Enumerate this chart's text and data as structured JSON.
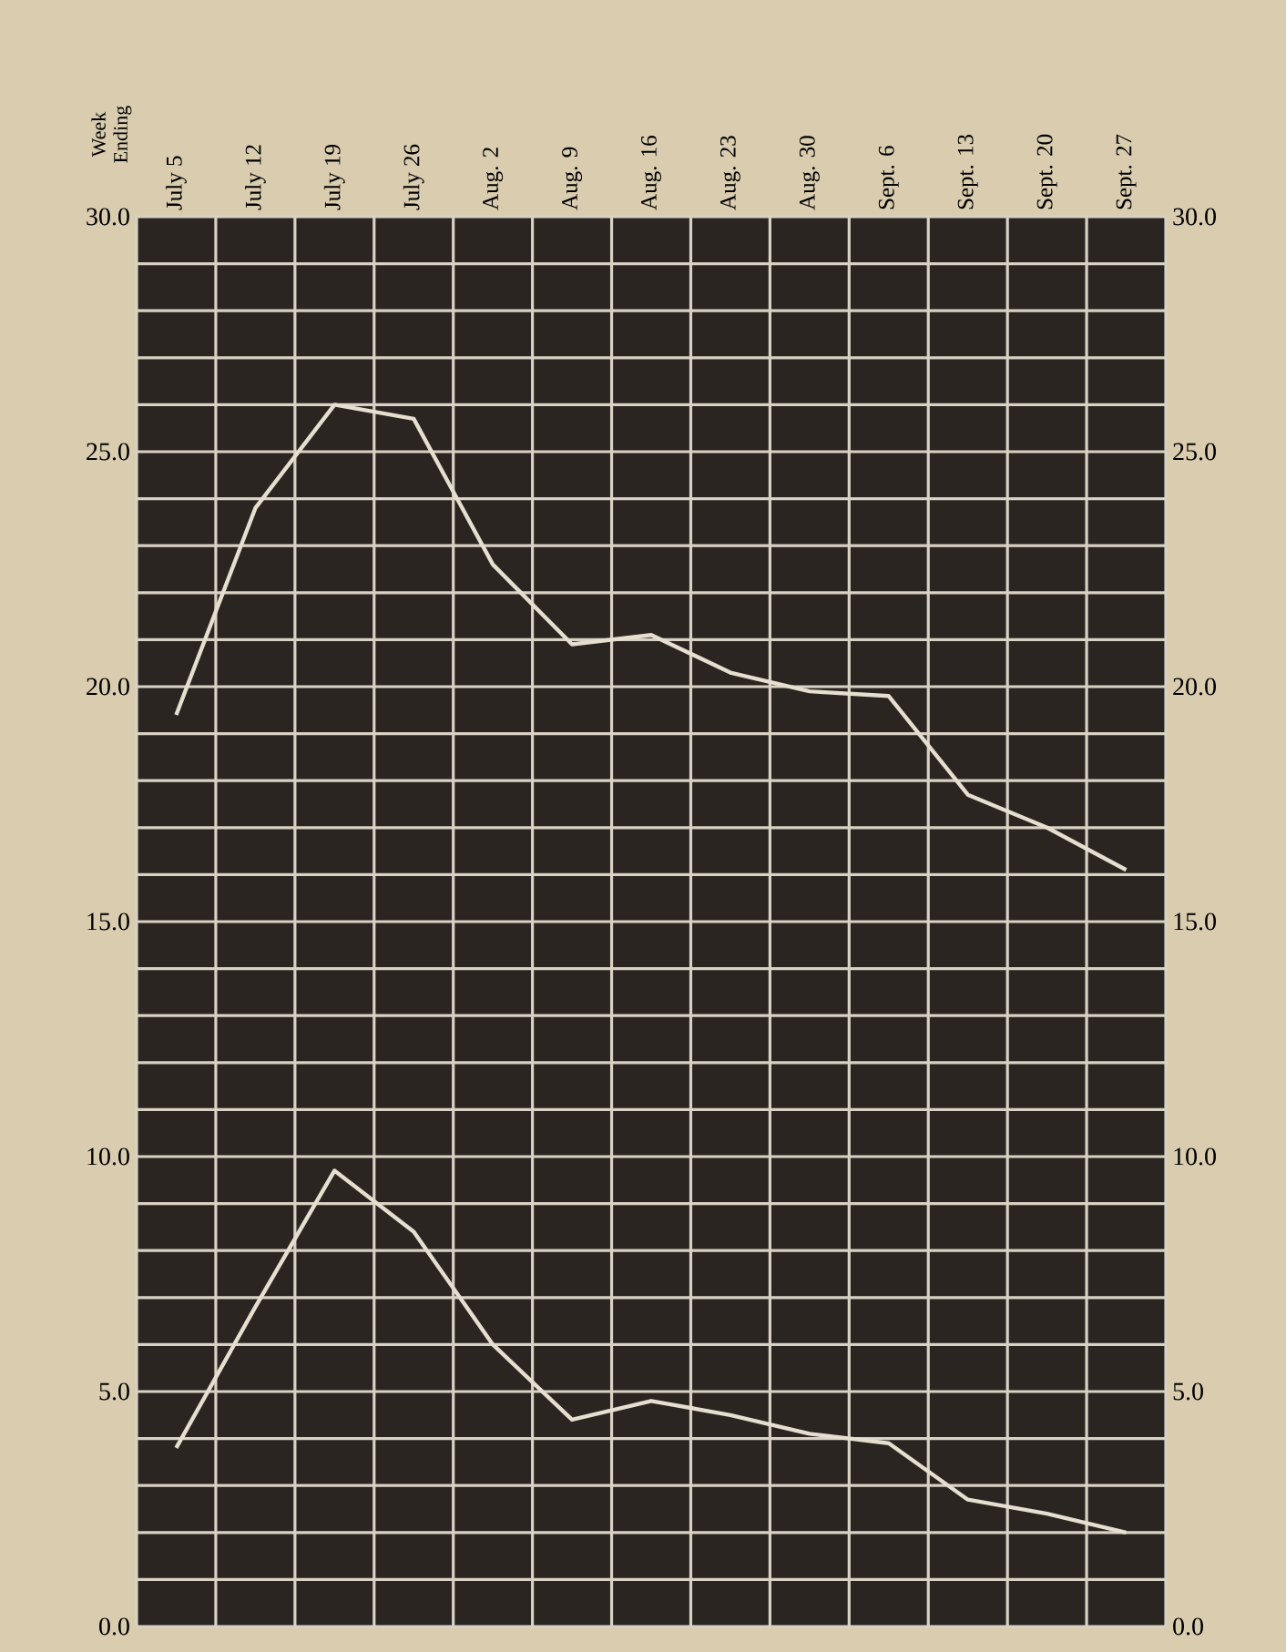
{
  "chart_data": {
    "type": "line",
    "annotations": [
      "Week Ending"
    ],
    "categories": [
      "July 5",
      "July 12",
      "July 19",
      "July 26",
      "Aug. 2",
      "Aug. 9",
      "Aug. 16",
      "Aug. 23",
      "Aug. 30",
      "Sept. 6",
      "Sept. 13",
      "Sept. 20",
      "Sept. 27"
    ],
    "series": [
      {
        "color": "#e4dfcf",
        "values": [
          19.4,
          23.8,
          26.0,
          25.7,
          22.6,
          20.9,
          21.1,
          20.3,
          19.9,
          19.8,
          17.7,
          17.0,
          16.1
        ]
      },
      {
        "color": "#e4dfcf",
        "values": [
          3.8,
          6.8,
          9.7,
          8.4,
          6.0,
          4.4,
          4.8,
          4.5,
          4.1,
          3.9,
          2.7,
          2.4,
          2.0
        ]
      }
    ],
    "ylim": [
      0,
      30
    ],
    "yticks": [
      {
        "value": 0,
        "label": "0.0"
      },
      {
        "value": 5,
        "label": "5.0"
      },
      {
        "value": 10,
        "label": "10.0"
      },
      {
        "value": 15,
        "label": "15.0"
      },
      {
        "value": 20,
        "label": "20.0"
      },
      {
        "value": 25,
        "label": "25.0"
      },
      {
        "value": 30,
        "label": "30.0"
      }
    ],
    "y2lim": [
      0,
      30
    ],
    "y2ticks": [
      {
        "value": 0,
        "label": "0.0"
      },
      {
        "value": 5,
        "label": "5.0"
      },
      {
        "value": 10,
        "label": "10.0"
      },
      {
        "value": 15,
        "label": "15.0"
      },
      {
        "value": 20,
        "label": "20.0"
      },
      {
        "value": 25,
        "label": "25.0"
      },
      {
        "value": 30,
        "label": "30.0"
      }
    ],
    "grid": true
  }
}
